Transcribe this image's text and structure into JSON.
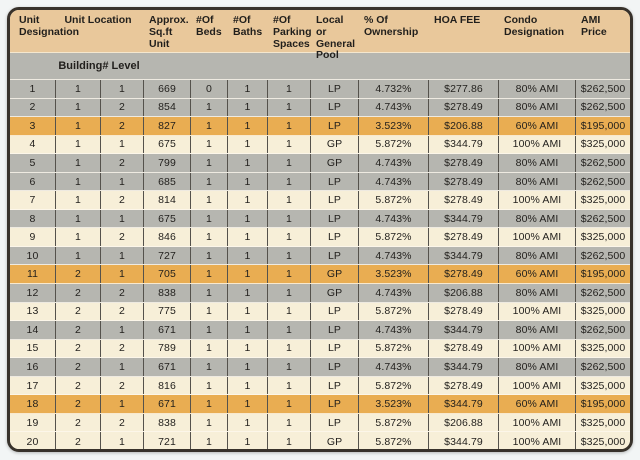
{
  "table": {
    "headers": [
      "Unit\nDesignation",
      "Unit Location",
      "Approx.\nSq.ft\nUnit",
      "#Of\nBeds",
      "#Of\nBaths",
      "#Of\nParking\nSpaces",
      "Local or\nGeneral\nPool",
      "% Of\nOwnership",
      "HOA FEE",
      "Condo\nDesignation",
      "AMI Price"
    ],
    "subheader": "Building# Level",
    "column_keys": [
      "unit-designation",
      "building-number",
      "level",
      "sqft",
      "beds",
      "baths",
      "parking-spaces",
      "pool",
      "ownership-pct",
      "hoa-fee",
      "condo-designation",
      "ami-price"
    ],
    "rows": [
      {
        "band": "gray",
        "cells": [
          "1",
          "1",
          "1",
          "669",
          "0",
          "1",
          "1",
          "LP",
          "4.732%",
          "$277.86",
          "80% AMI",
          "$262,500"
        ]
      },
      {
        "band": "gray",
        "cells": [
          "2",
          "1",
          "2",
          "854",
          "1",
          "1",
          "1",
          "LP",
          "4.743%",
          "$278.49",
          "80% AMI",
          "$262,500"
        ]
      },
      {
        "band": "gold",
        "cells": [
          "3",
          "1",
          "2",
          "827",
          "1",
          "1",
          "1",
          "LP",
          "3.523%",
          "$206.88",
          "60% AMI",
          "$195,000"
        ]
      },
      {
        "band": "cream",
        "cells": [
          "4",
          "1",
          "1",
          "675",
          "1",
          "1",
          "1",
          "GP",
          "5.872%",
          "$344.79",
          "100% AMI",
          "$325,000"
        ]
      },
      {
        "band": "gray",
        "cells": [
          "5",
          "1",
          "2",
          "799",
          "1",
          "1",
          "1",
          "GP",
          "4.743%",
          "$278.49",
          "80% AMI",
          "$262,500"
        ]
      },
      {
        "band": "gray",
        "cells": [
          "6",
          "1",
          "1",
          "685",
          "1",
          "1",
          "1",
          "LP",
          "4.743%",
          "$278.49",
          "80% AMI",
          "$262,500"
        ]
      },
      {
        "band": "cream",
        "cells": [
          "7",
          "1",
          "2",
          "814",
          "1",
          "1",
          "1",
          "LP",
          "5.872%",
          "$278.49",
          "100% AMI",
          "$325,000"
        ]
      },
      {
        "band": "gray",
        "cells": [
          "8",
          "1",
          "1",
          "675",
          "1",
          "1",
          "1",
          "LP",
          "4.743%",
          "$344.79",
          "80% AMI",
          "$262,500"
        ]
      },
      {
        "band": "cream",
        "cells": [
          "9",
          "1",
          "2",
          "846",
          "1",
          "1",
          "1",
          "LP",
          "5.872%",
          "$278.49",
          "100% AMI",
          "$325,000"
        ]
      },
      {
        "band": "gray",
        "cells": [
          "10",
          "1",
          "1",
          "727",
          "1",
          "1",
          "1",
          "LP",
          "4.743%",
          "$344.79",
          "80% AMI",
          "$262,500"
        ]
      },
      {
        "band": "gold",
        "cells": [
          "11",
          "2",
          "1",
          "705",
          "1",
          "1",
          "1",
          "GP",
          "3.523%",
          "$278.49",
          "60% AMI",
          "$195,000"
        ]
      },
      {
        "band": "gray",
        "cells": [
          "12",
          "2",
          "2",
          "838",
          "1",
          "1",
          "1",
          "GP",
          "4.743%",
          "$206.88",
          "80% AMI",
          "$262,500"
        ]
      },
      {
        "band": "cream",
        "cells": [
          "13",
          "2",
          "2",
          "775",
          "1",
          "1",
          "1",
          "LP",
          "5.872%",
          "$278.49",
          "100% AMI",
          "$325,000"
        ]
      },
      {
        "band": "gray",
        "cells": [
          "14",
          "2",
          "1",
          "671",
          "1",
          "1",
          "1",
          "LP",
          "4.743%",
          "$344.79",
          "80% AMI",
          "$262,500"
        ]
      },
      {
        "band": "cream",
        "cells": [
          "15",
          "2",
          "2",
          "789",
          "1",
          "1",
          "1",
          "LP",
          "5.872%",
          "$278.49",
          "100% AMI",
          "$325,000"
        ]
      },
      {
        "band": "gray",
        "cells": [
          "16",
          "2",
          "1",
          "671",
          "1",
          "1",
          "1",
          "LP",
          "4.743%",
          "$344.79",
          "80% AMI",
          "$262,500"
        ]
      },
      {
        "band": "cream",
        "cells": [
          "17",
          "2",
          "2",
          "816",
          "1",
          "1",
          "1",
          "LP",
          "5.872%",
          "$278.49",
          "100% AMI",
          "$325,000"
        ]
      },
      {
        "band": "gold",
        "cells": [
          "18",
          "2",
          "1",
          "671",
          "1",
          "1",
          "1",
          "LP",
          "3.523%",
          "$344.79",
          "60% AMI",
          "$195,000"
        ]
      },
      {
        "band": "cream",
        "cells": [
          "19",
          "2",
          "2",
          "838",
          "1",
          "1",
          "1",
          "LP",
          "5.872%",
          "$206.88",
          "100% AMI",
          "$325,000"
        ]
      },
      {
        "band": "cream",
        "cells": [
          "20",
          "2",
          "1",
          "721",
          "1",
          "1",
          "1",
          "GP",
          "5.872%",
          "$344.79",
          "100% AMI",
          "$325,000"
        ]
      }
    ]
  },
  "colors": {
    "page_bg": "#f2f5f5",
    "header_bg": "#e9c89b",
    "band_gray": "#b6b6b0",
    "band_cream": "#f7efd8",
    "band_gold": "#e9ad52",
    "border": "#38322b",
    "divider": "#55524c",
    "text": "#211f1c"
  }
}
